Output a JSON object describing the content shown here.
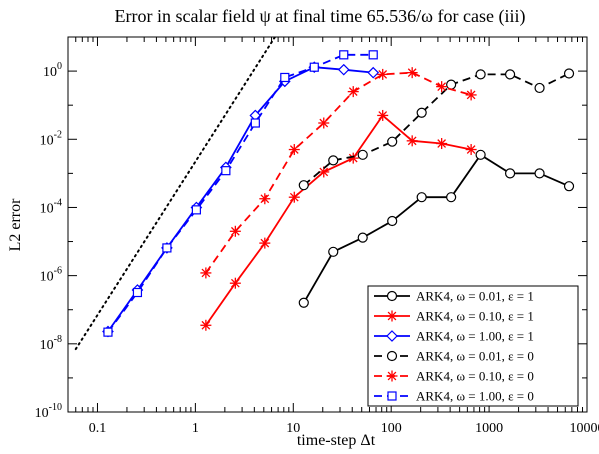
{
  "chart_data": {
    "type": "line",
    "title": "Error in scalar field ψ at final time 65.536/ω for case (iii)",
    "xlabel": "time-step Δt",
    "ylabel": "L2 error",
    "xscale": "log",
    "yscale": "log",
    "xlim": [
      0.05,
      10000
    ],
    "ylim": [
      1e-10,
      10
    ],
    "x_ticks": [
      {
        "value": 0.1,
        "label": "0.1"
      },
      {
        "value": 1,
        "label": "1"
      },
      {
        "value": 10,
        "label": "10"
      },
      {
        "value": 100,
        "label": "100"
      },
      {
        "value": 1000,
        "label": "1000"
      },
      {
        "value": 10000,
        "label": "10000"
      }
    ],
    "y_ticks": [
      {
        "value": 1e-10,
        "base": "10",
        "exp": "-10"
      },
      {
        "value": 1e-08,
        "base": "10",
        "exp": "-8"
      },
      {
        "value": 1e-06,
        "base": "10",
        "exp": "-6"
      },
      {
        "value": 0.0001,
        "base": "10",
        "exp": "-4"
      },
      {
        "value": 0.01,
        "base": "10",
        "exp": "-2"
      },
      {
        "value": 1,
        "base": "10",
        "exp": "0"
      }
    ],
    "grid": false,
    "legend_position": "bottom-right",
    "reference_line": {
      "style": "dotted",
      "color": "#000000",
      "x": [
        0.06,
        6.5
      ],
      "y": [
        7e-09,
        10
      ]
    },
    "series": [
      {
        "name": "ARK4, ω = 0.01, ε = 1",
        "color": "#000000",
        "dash": "solid",
        "marker": "circle",
        "x": [
          12.8,
          25.6,
          51.2,
          102.4,
          204.8,
          409.6,
          819.2,
          1638.4,
          3276.8,
          6553.6
        ],
        "y": [
          1.6e-07,
          5e-06,
          1.3e-05,
          4e-05,
          0.0002,
          0.0002,
          0.0035,
          0.001,
          0.001,
          0.00042
        ]
      },
      {
        "name": "ARK4, ω = 0.10, ε = 1",
        "color": "#ff0000",
        "dash": "solid",
        "marker": "asterisk",
        "x": [
          1.28,
          2.56,
          5.12,
          10.24,
          20.48,
          40.96,
          81.92,
          163.84,
          327.68,
          655.36
        ],
        "y": [
          3.5e-08,
          6e-07,
          9e-06,
          0.0002,
          0.0011,
          0.0028,
          0.05,
          0.009,
          0.0075,
          0.005
        ]
      },
      {
        "name": "ARK4, ω = 1.00, ε = 1",
        "color": "#0000ff",
        "dash": "solid",
        "marker": "diamond",
        "x": [
          0.128,
          0.256,
          0.512,
          1.024,
          2.048,
          4.096,
          8.192,
          16.384,
          32.768,
          65.536
        ],
        "y": [
          2.3e-08,
          3.8e-07,
          6.5e-06,
          0.0001,
          0.0015,
          0.05,
          0.5,
          1.3,
          1.1,
          0.9
        ]
      },
      {
        "name": "ARK4, ω = 0.01, ε = 0",
        "color": "#000000",
        "dash": "dashed",
        "marker": "circle",
        "x": [
          12.8,
          25.6,
          51.2,
          102.4,
          204.8,
          409.6,
          819.2,
          1638.4,
          3276.8,
          6553.6
        ],
        "y": [
          0.00045,
          0.0024,
          0.0035,
          0.0085,
          0.06,
          0.4,
          0.8,
          0.8,
          0.32,
          0.85
        ]
      },
      {
        "name": "ARK4, ω = 0.10, ε = 0",
        "color": "#ff0000",
        "dash": "dashed",
        "marker": "asterisk",
        "x": [
          1.28,
          2.56,
          5.12,
          10.24,
          20.48,
          40.96,
          81.92,
          163.84,
          327.68,
          655.36
        ],
        "y": [
          1.2e-06,
          2e-05,
          0.00018,
          0.005,
          0.03,
          0.25,
          0.8,
          0.9,
          0.35,
          0.2
        ]
      },
      {
        "name": "ARK4, ω = 1.00, ε = 0",
        "color": "#0000ff",
        "dash": "dashed",
        "marker": "square",
        "x": [
          0.128,
          0.256,
          0.512,
          1.024,
          2.048,
          4.096,
          8.192,
          16.384,
          32.768,
          65.536
        ],
        "y": [
          2.2e-08,
          3.2e-07,
          6.5e-06,
          8.5e-05,
          0.0012,
          0.03,
          0.65,
          1.3,
          3,
          3
        ]
      }
    ]
  }
}
